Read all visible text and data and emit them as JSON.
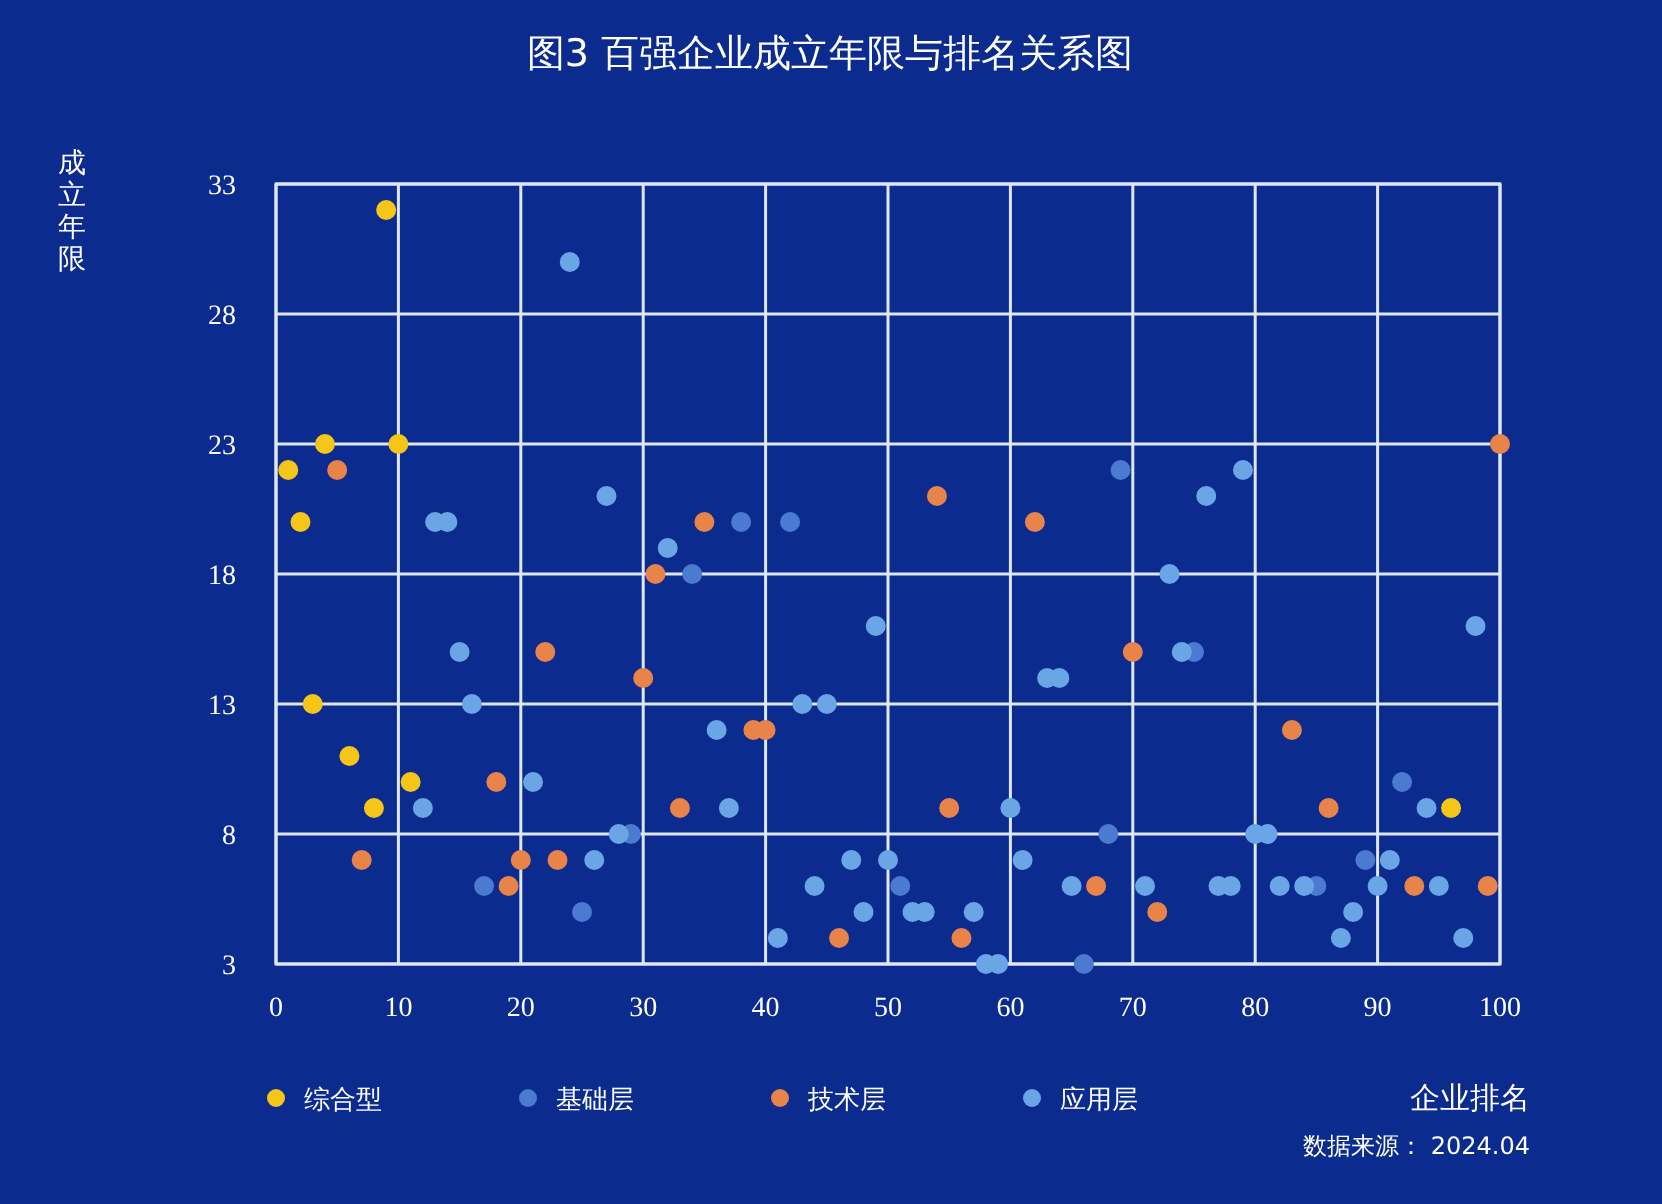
{
  "chart_data": {
    "type": "scatter",
    "title": "图3 百强企业成立年限与排名关系图",
    "xlabel": "企业排名",
    "ylabel": "成立年限",
    "xlim": [
      0,
      100
    ],
    "ylim": [
      3,
      33
    ],
    "xticks": [
      0,
      10,
      20,
      30,
      40,
      50,
      60,
      70,
      80,
      90,
      100
    ],
    "yticks": [
      3,
      8,
      13,
      18,
      23,
      28,
      33
    ],
    "grid": true,
    "legend": "bottom",
    "marker": "circle",
    "series": [
      {
        "name": "综合型",
        "color": "#f5c518",
        "x": [
          1,
          2,
          3,
          4,
          6,
          8,
          9,
          10,
          11,
          96
        ],
        "values": [
          22,
          20,
          13,
          23,
          11,
          9,
          32,
          23,
          10,
          9
        ]
      },
      {
        "name": "基础层",
        "color": "#4a7bd0",
        "x": [
          17,
          25,
          29,
          34,
          38,
          42,
          51,
          66,
          68,
          69,
          75,
          85,
          89,
          92
        ],
        "values": [
          6,
          5,
          8,
          18,
          20,
          20,
          6,
          3,
          8,
          22,
          15,
          6,
          7,
          10
        ]
      },
      {
        "name": "技术层",
        "color": "#e8834a",
        "x": [
          5,
          7,
          18,
          19,
          20,
          22,
          23,
          30,
          31,
          33,
          35,
          39,
          40,
          46,
          54,
          55,
          56,
          62,
          67,
          70,
          72,
          83,
          86,
          93,
          99,
          100
        ],
        "values": [
          22,
          7,
          10,
          6,
          7,
          15,
          7,
          14,
          18,
          9,
          20,
          12,
          12,
          4,
          21,
          9,
          4,
          20,
          6,
          15,
          5,
          12,
          9,
          6,
          6,
          23
        ]
      },
      {
        "name": "应用层",
        "color": "#6aa6e6",
        "x": [
          12,
          13,
          14,
          15,
          16,
          21,
          24,
          26,
          27,
          28,
          32,
          36,
          37,
          41,
          43,
          44,
          45,
          47,
          48,
          49,
          50,
          52,
          53,
          57,
          58,
          59,
          60,
          61,
          63,
          64,
          65,
          71,
          73,
          74,
          76,
          77,
          78,
          79,
          80,
          81,
          82,
          84,
          87,
          88,
          90,
          91,
          94,
          95,
          97,
          98
        ],
        "values": [
          9,
          20,
          20,
          15,
          13,
          10,
          30,
          7,
          21,
          8,
          19,
          12,
          9,
          4,
          13,
          6,
          13,
          7,
          5,
          16,
          7,
          5,
          5,
          5,
          3,
          3,
          9,
          7,
          14,
          14,
          6,
          6,
          18,
          15,
          21,
          6,
          6,
          22,
          8,
          8,
          6,
          6,
          4,
          5,
          6,
          7,
          9,
          6,
          4,
          16
        ]
      }
    ],
    "annotations": [
      "数据来源： 2024.04"
    ]
  }
}
